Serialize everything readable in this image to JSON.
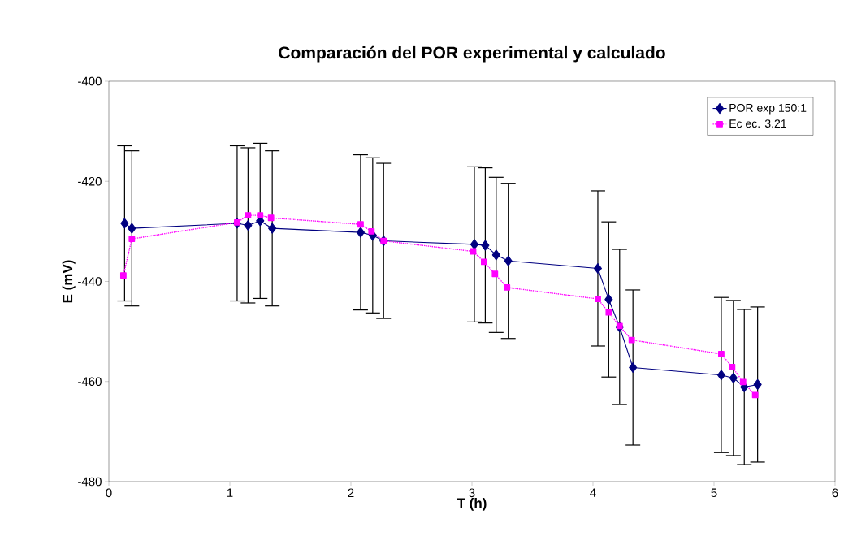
{
  "chart_data": {
    "type": "line",
    "title": "Comparación del POR experimental y calculado",
    "xlabel": "T (h)",
    "ylabel": "E (mV)",
    "xlim": [
      0,
      6
    ],
    "xticks": [
      0,
      1,
      2,
      3,
      4,
      5,
      6
    ],
    "ylim": [
      -480,
      -400
    ],
    "yticks": [
      -480,
      -460,
      -440,
      -420,
      -400
    ],
    "grid": false,
    "legend": "top right",
    "series": [
      {
        "name": "POR exp 150:1",
        "color": "#000080",
        "marker": "diamond",
        "line_style": "solid",
        "x": [
          0.13,
          0.19,
          1.06,
          1.15,
          1.25,
          1.35,
          2.08,
          2.18,
          2.27,
          3.02,
          3.11,
          3.2,
          3.3,
          4.04,
          4.13,
          4.22,
          4.33,
          5.06,
          5.16,
          5.25,
          5.36
        ],
        "values": [
          -428.4,
          -429.4,
          -428.4,
          -428.8,
          -427.9,
          -429.4,
          -430.2,
          -430.8,
          -431.9,
          -432.6,
          -432.8,
          -434.7,
          -435.9,
          -437.4,
          -443.6,
          -449.1,
          -457.2,
          -458.7,
          -459.3,
          -461.1,
          -460.6
        ],
        "errors": [
          15.5,
          15.5,
          15.5,
          15.5,
          15.5,
          15.5,
          15.5,
          15.5,
          15.5,
          15.5,
          15.5,
          15.5,
          15.5,
          15.5,
          15.5,
          15.5,
          15.5,
          15.5,
          15.5,
          15.5,
          15.5
        ]
      },
      {
        "name": "Ec ec. 3.21",
        "color": "#ff00ff",
        "marker": "square",
        "line_style": "dotted",
        "x": [
          0.12,
          0.19,
          1.06,
          1.15,
          1.25,
          1.34,
          2.08,
          2.17,
          2.27,
          3.01,
          3.1,
          3.19,
          3.29,
          4.04,
          4.13,
          4.22,
          4.32,
          5.06,
          5.15,
          5.24,
          5.34
        ],
        "values": [
          -438.8,
          -431.5,
          -428.2,
          -426.8,
          -426.8,
          -427.3,
          -428.6,
          -430.0,
          -431.9,
          -434.0,
          -436.1,
          -438.5,
          -441.2,
          -443.5,
          -446.2,
          -448.9,
          -451.7,
          -454.5,
          -457.1,
          -460.1,
          -462.7
        ]
      }
    ]
  }
}
